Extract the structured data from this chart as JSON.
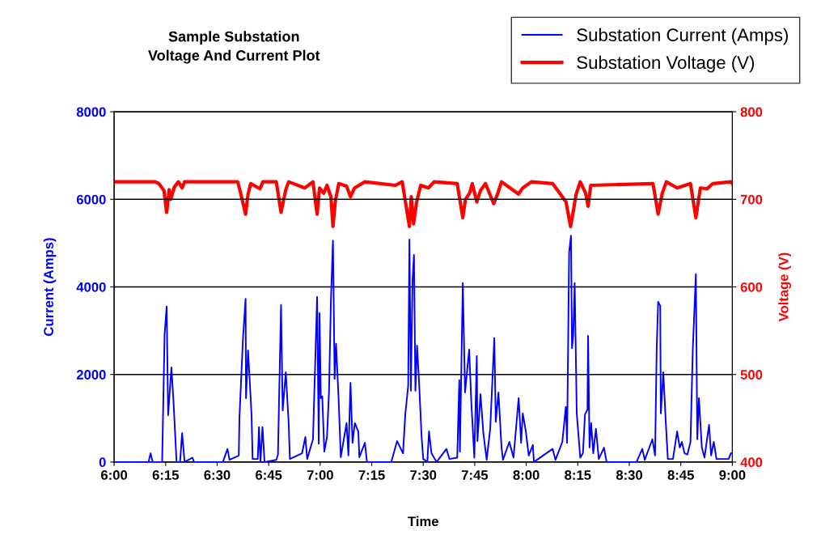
{
  "chart_data": {
    "type": "line",
    "title": "Sample Substation\nVoltage And Current Plot",
    "xlabel": "Time",
    "ylabel": "Current (Amps)",
    "y2label": "Voltage (V)",
    "xlim": [
      6,
      9
    ],
    "xticks": [
      {
        "value": 6,
        "label": "6:00"
      },
      {
        "value": 6.25,
        "label": "6:15"
      },
      {
        "value": 6.5,
        "label": "6:30"
      },
      {
        "value": 6.75,
        "label": "6:45"
      },
      {
        "value": 7,
        "label": "7:00"
      },
      {
        "value": 7.25,
        "label": "7:15"
      },
      {
        "value": 7.5,
        "label": "7:30"
      },
      {
        "value": 7.75,
        "label": "7:45"
      },
      {
        "value": 8,
        "label": "8:00"
      },
      {
        "value": 8.25,
        "label": "8:15"
      },
      {
        "value": 8.5,
        "label": "8:30"
      },
      {
        "value": 8.75,
        "label": "8:45"
      },
      {
        "value": 9,
        "label": "9:00"
      }
    ],
    "ylim": [
      0,
      8000
    ],
    "yticks": [
      0,
      2000,
      4000,
      6000,
      8000
    ],
    "y2lim": [
      400,
      800
    ],
    "y2ticks": [
      400,
      500,
      600,
      700,
      800
    ],
    "grid": "y",
    "legend": "top right",
    "marker": "none",
    "line_style": "solid",
    "series": [
      {
        "name": "Substation Current (Amps)",
        "color": "#0000ff",
        "x": [
          6,
          6.167,
          6.177,
          6.187,
          6.233,
          6.245,
          6.255,
          6.262,
          6.278,
          6.288,
          6.303,
          6.32,
          6.33,
          6.342,
          6.38,
          6.388,
          6.528,
          6.55,
          6.56,
          6.605,
          6.608,
          6.625,
          6.638,
          6.64,
          6.65,
          6.667,
          6.672,
          6.697,
          6.703,
          6.71,
          6.72,
          6.73,
          6.787,
          6.795,
          6.81,
          6.818,
          6.833,
          6.847,
          6.853,
          6.912,
          6.928,
          6.937,
          6.965,
          6.985,
          6.993,
          6.997,
          7.003,
          7.01,
          7.02,
          7.033,
          7.043,
          7.052,
          7.062,
          7.07,
          7.077,
          7.09,
          7.1,
          7.128,
          7.137,
          7.147,
          7.157,
          7.168,
          7.185,
          7.19,
          7.217,
          7.227,
          7.345,
          7.373,
          7.402,
          7.413,
          7.427,
          7.433,
          7.44,
          7.448,
          7.455,
          7.462,
          7.47,
          7.48,
          7.492,
          7.5,
          7.52,
          7.528,
          7.54,
          7.565,
          7.613,
          7.627,
          7.665,
          7.675,
          7.678,
          7.692,
          7.703,
          7.723,
          7.733,
          7.748,
          7.76,
          7.763,
          7.778,
          7.792,
          7.808,
          7.825,
          7.845,
          7.852,
          7.865,
          7.88,
          7.887,
          7.918,
          7.938,
          7.963,
          7.975,
          7.983,
          7.998,
          8.012,
          8.032,
          8.037,
          8.128,
          8.142,
          8.175,
          8.192,
          8.198,
          8.208,
          8.217,
          8.222,
          8.228,
          8.235,
          8.245,
          8.262,
          8.275,
          8.285,
          8.297,
          8.3,
          8.307,
          8.315,
          8.325,
          8.338,
          8.352,
          8.377,
          8.39,
          8.535,
          8.563,
          8.575,
          8.612,
          8.625,
          8.633,
          8.64,
          8.65,
          8.653,
          8.665,
          8.677,
          8.687,
          8.712,
          8.732,
          8.745,
          8.755,
          8.768,
          8.782,
          8.797,
          8.808,
          8.823,
          8.83,
          8.838,
          8.852,
          8.865,
          8.887,
          8.897,
          8.91,
          8.923,
          8.982,
          8.993,
          9
        ],
        "values": [
          0,
          0,
          200,
          0,
          0,
          2920,
          3550,
          1070,
          2160,
          1400,
          0,
          0,
          660,
          0,
          100,
          0,
          0,
          300,
          50,
          150,
          1000,
          2790,
          3730,
          1460,
          2550,
          1070,
          70,
          70,
          800,
          0,
          800,
          0,
          50,
          170,
          3590,
          1180,
          2050,
          890,
          70,
          200,
          570,
          70,
          520,
          3770,
          420,
          3400,
          1460,
          1500,
          240,
          570,
          1630,
          3680,
          5060,
          1900,
          2700,
          1370,
          110,
          890,
          150,
          1810,
          440,
          890,
          700,
          110,
          440,
          0,
          0,
          480,
          200,
          1090,
          1740,
          5080,
          1630,
          4140,
          4730,
          1630,
          2660,
          1810,
          590,
          70,
          0,
          700,
          200,
          0,
          300,
          70,
          100,
          1870,
          240,
          4090,
          1590,
          2570,
          1400,
          100,
          2420,
          480,
          1550,
          650,
          50,
          760,
          2830,
          920,
          1590,
          330,
          50,
          460,
          100,
          1460,
          440,
          1110,
          700,
          150,
          390,
          0,
          300,
          50,
          460,
          1260,
          440,
          4790,
          5170,
          2600,
          2900,
          4090,
          1110,
          100,
          200,
          1090,
          1200,
          2880,
          330,
          890,
          200,
          760,
          70,
          330,
          0,
          0,
          300,
          50,
          520,
          150,
          2600,
          3660,
          3570,
          1110,
          2050,
          920,
          70,
          70,
          700,
          330,
          460,
          200,
          170,
          460,
          2550,
          4290,
          520,
          1460,
          330,
          100,
          850,
          150,
          460,
          70,
          70,
          200,
          200
        ]
      },
      {
        "name": "Substation Voltage (V)",
        "color": "#ff0000",
        "axis": "y2",
        "x": [
          6,
          6.2,
          6.217,
          6.242,
          6.255,
          6.267,
          6.275,
          6.292,
          6.312,
          6.33,
          6.342,
          6.6,
          6.615,
          6.638,
          6.65,
          6.663,
          6.708,
          6.722,
          6.787,
          6.81,
          6.833,
          6.847,
          6.925,
          6.965,
          6.985,
          6.997,
          7.017,
          7.033,
          7.052,
          7.062,
          7.073,
          7.09,
          7.128,
          7.147,
          7.167,
          7.217,
          7.365,
          7.398,
          7.433,
          7.442,
          7.453,
          7.468,
          7.488,
          7.525,
          7.553,
          7.665,
          7.692,
          7.705,
          7.725,
          7.738,
          7.76,
          7.778,
          7.802,
          7.842,
          7.862,
          7.88,
          7.962,
          7.983,
          8.025,
          8.128,
          8.193,
          8.215,
          8.228,
          8.242,
          8.262,
          8.288,
          8.3,
          8.313,
          8.615,
          8.64,
          8.66,
          8.68,
          8.732,
          8.797,
          8.823,
          8.845,
          8.878,
          8.905,
          8.993,
          9
        ],
        "values": [
          720,
          720,
          718,
          710,
          685,
          711,
          700,
          714,
          720,
          713,
          720,
          720,
          706,
          683,
          706,
          718,
          712,
          720,
          720,
          685,
          711,
          720,
          713,
          720,
          683,
          713,
          707,
          716,
          703,
          669,
          697,
          718,
          715,
          703,
          713,
          720,
          716,
          720,
          669,
          703,
          672,
          697,
          716,
          713,
          720,
          718,
          679,
          700,
          707,
          718,
          697,
          710,
          718,
          695,
          707,
          720,
          706,
          713,
          720,
          718,
          697,
          669,
          686,
          706,
          720,
          707,
          692,
          716,
          718,
          683,
          707,
          720,
          713,
          718,
          679,
          713,
          712,
          718,
          720,
          718
        ]
      }
    ]
  }
}
